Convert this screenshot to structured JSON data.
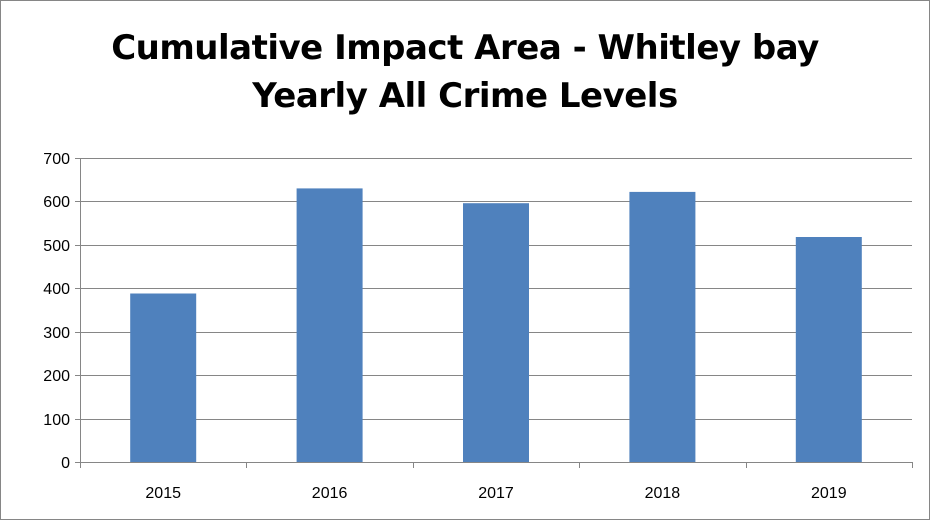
{
  "chart_data": {
    "type": "bar",
    "title": "Cumulative Impact Area - Whitley bay",
    "subtitle": "Yearly All Crime Levels",
    "xlabel": "",
    "ylabel": "",
    "categories": [
      "2015",
      "2016",
      "2017",
      "2018",
      "2019"
    ],
    "values": [
      388,
      630,
      596,
      622,
      518
    ],
    "ylim": [
      0,
      700
    ],
    "yticks": [
      0,
      100,
      200,
      300,
      400,
      500,
      600,
      700
    ],
    "grid": true,
    "legend": "none",
    "bar_color": "#4F81BD",
    "gridline_color": "#868686"
  }
}
